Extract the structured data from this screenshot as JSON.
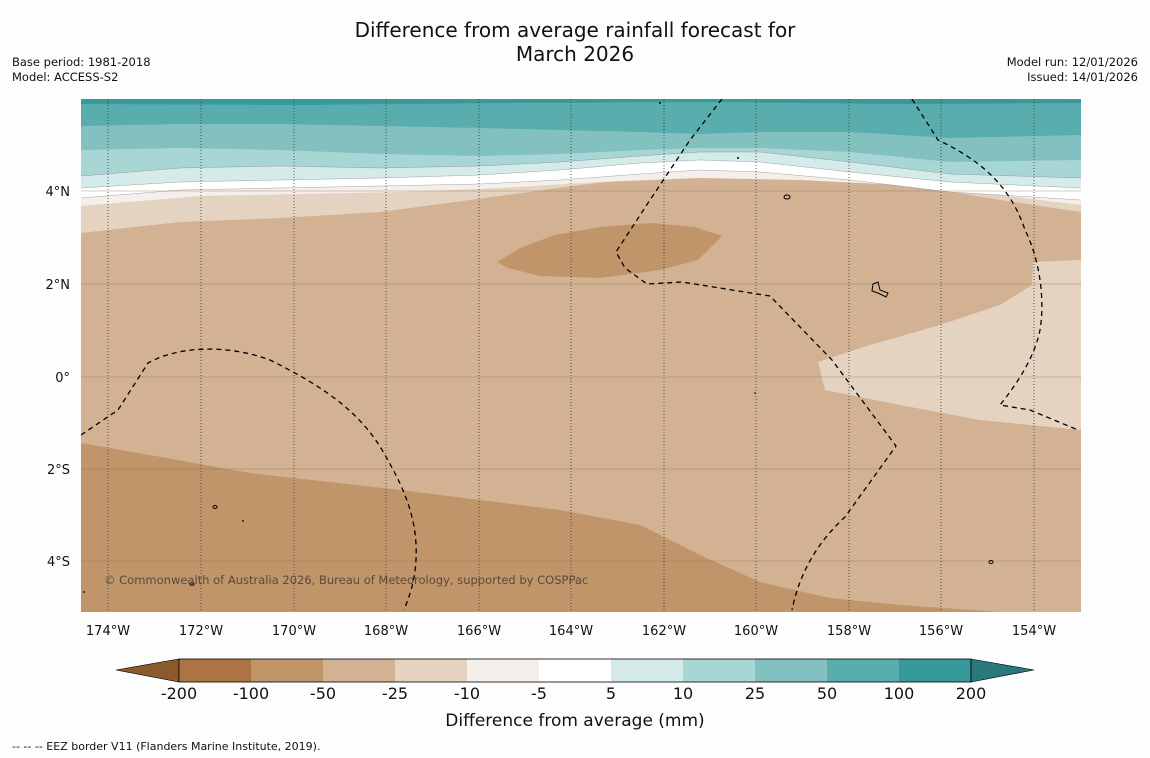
{
  "title": {
    "line1": "Difference from average rainfall forecast for",
    "line2": "March 2026"
  },
  "meta_left": {
    "base_period": "Base period: 1981-2018",
    "model": "Model: ACCESS-S2"
  },
  "meta_right": {
    "model_run": "Model run: 12/01/2026",
    "issued": "Issued: 14/01/2026"
  },
  "map": {
    "lon_labels": [
      "174°W",
      "172°W",
      "170°W",
      "168°W",
      "166°W",
      "164°W",
      "162°W",
      "160°W",
      "158°W",
      "156°W",
      "154°W"
    ],
    "lat_labels": [
      "4°N",
      "2°N",
      "0°",
      "2°S",
      "4°S"
    ],
    "copyright": "© Commonwealth of Australia 2026, Bureau of Meteorology, supported by COSPPac"
  },
  "colorbar": {
    "tick_labels": [
      "-200",
      "-100",
      "-50",
      "-25",
      "-10",
      "-5",
      "5",
      "10",
      "25",
      "50",
      "100",
      "200"
    ],
    "label": "Difference from average (mm)",
    "colors": {
      "below_min": "#8a5a2b",
      "b1": "#ad7443",
      "b2": "#c0956a",
      "b3": "#d2b293",
      "b4": "#e5d3c2",
      "b5": "#f4efea",
      "b6": "#ffffff",
      "b7": "#d4ebe9",
      "b8": "#a8d6d4",
      "b9": "#83c1c0",
      "b10": "#5aadad",
      "b11": "#36999a",
      "above_max": "#2b7a7b"
    }
  },
  "footer": "--  --  -- EEZ border V11 (Flanders Marine Institute, 2019)."
}
